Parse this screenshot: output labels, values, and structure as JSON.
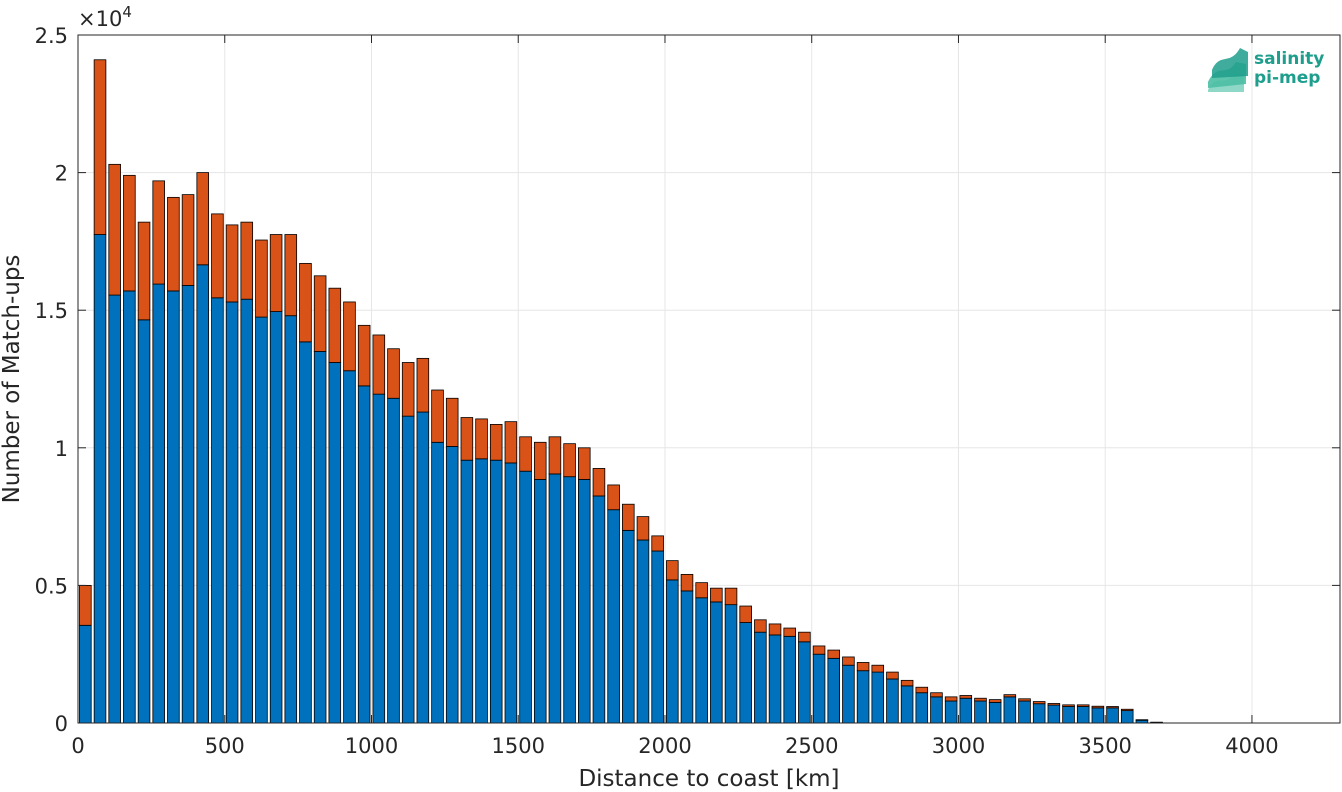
{
  "chart_data": {
    "type": "bar",
    "stacked": true,
    "title": "",
    "xlabel": "Distance to coast [km]",
    "ylabel": "Number of Match-ups",
    "y_exponent_label": "×10",
    "y_exponent_power": "4",
    "xlim": [
      0,
      4300
    ],
    "ylim": [
      0,
      25000
    ],
    "bin_width": 50,
    "x_ticks": [
      "0",
      "500",
      "1000",
      "1500",
      "2000",
      "2500",
      "3000",
      "3500",
      "4000"
    ],
    "y_ticks": [
      "0",
      "0.5",
      "1",
      "1.5",
      "2",
      "2.5"
    ],
    "grid": true,
    "colors": {
      "series1": "#0072BD",
      "series2": "#D95319",
      "edge": "#000000",
      "grid": "#e6e6e6"
    },
    "x": [
      25,
      75,
      125,
      175,
      225,
      275,
      325,
      375,
      425,
      475,
      525,
      575,
      625,
      675,
      725,
      775,
      825,
      875,
      925,
      975,
      1025,
      1075,
      1125,
      1175,
      1225,
      1275,
      1325,
      1375,
      1425,
      1475,
      1525,
      1575,
      1625,
      1675,
      1725,
      1775,
      1825,
      1875,
      1925,
      1975,
      2025,
      2075,
      2125,
      2175,
      2225,
      2275,
      2325,
      2375,
      2425,
      2475,
      2525,
      2575,
      2625,
      2675,
      2725,
      2775,
      2825,
      2875,
      2925,
      2975,
      3025,
      3075,
      3125,
      3175,
      3225,
      3275,
      3325,
      3375,
      3425,
      3475,
      3525,
      3575,
      3625,
      3675,
      3725
    ],
    "series": [
      {
        "values": [
          3550,
          17750,
          15550,
          15700,
          14650,
          15950,
          15700,
          15900,
          16650,
          15450,
          15300,
          15400,
          14750,
          14950,
          14800,
          13850,
          13500,
          13100,
          12800,
          12250,
          11950,
          11800,
          11150,
          11300,
          10200,
          10050,
          9550,
          9600,
          9550,
          9450,
          9150,
          8850,
          9050,
          8950,
          8850,
          8250,
          7750,
          7000,
          6650,
          6250,
          5200,
          4800,
          4550,
          4400,
          4300,
          3650,
          3300,
          3200,
          3150,
          2950,
          2500,
          2350,
          2100,
          1900,
          1850,
          1600,
          1350,
          1100,
          950,
          800,
          900,
          800,
          750,
          950,
          800,
          700,
          650,
          600,
          600,
          550,
          550,
          450,
          100,
          20,
          0
        ]
      },
      {
        "values": [
          1450,
          6350,
          4750,
          4200,
          3550,
          3750,
          3400,
          3300,
          3350,
          3050,
          2800,
          2800,
          2800,
          2800,
          2950,
          2850,
          2750,
          2700,
          2500,
          2200,
          2150,
          1800,
          1950,
          1950,
          1900,
          1750,
          1550,
          1450,
          1300,
          1500,
          1250,
          1350,
          1350,
          1200,
          1150,
          1000,
          900,
          950,
          850,
          550,
          700,
          600,
          550,
          500,
          600,
          600,
          450,
          400,
          300,
          350,
          300,
          300,
          300,
          300,
          250,
          250,
          200,
          200,
          150,
          150,
          100,
          100,
          100,
          80,
          80,
          80,
          60,
          60,
          60,
          60,
          50,
          50,
          20,
          10,
          0
        ]
      }
    ]
  },
  "logo": {
    "line1": "salinity",
    "line2": "pi-mep"
  }
}
